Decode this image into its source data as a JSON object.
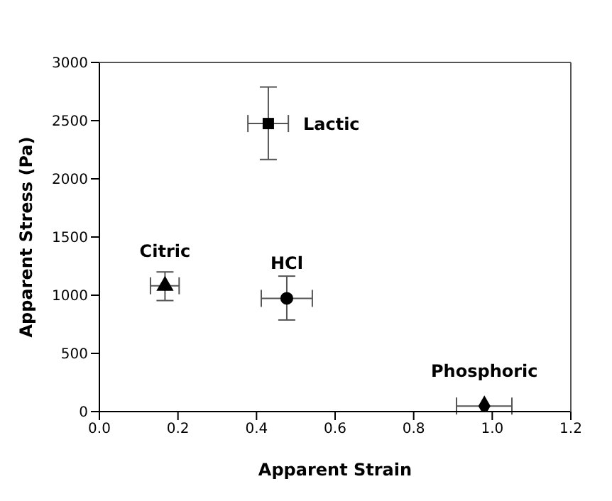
{
  "chart_data": {
    "type": "scatter",
    "xlabel": "Apparent Strain",
    "ylabel": "Apparent Stress (Pa)",
    "xlim": [
      0,
      1.2
    ],
    "xticks": [
      {
        "value": 0,
        "label": "0.0"
      },
      {
        "value": 0.2,
        "label": "0.2"
      },
      {
        "value": 0.4,
        "label": "0.4"
      },
      {
        "value": 0.6,
        "label": "0.6"
      },
      {
        "value": 0.8,
        "label": "0.8"
      },
      {
        "value": 1,
        "label": "1.0"
      },
      {
        "value": 1.2,
        "label": "1.2"
      }
    ],
    "ylim": [
      0,
      3000
    ],
    "yticks": [
      0,
      500,
      1000,
      1500,
      2000,
      2500,
      3000
    ],
    "grid": false,
    "legend": false,
    "series": [
      {
        "name": "Lactic",
        "color": "#000000",
        "marker": "square",
        "x": [
          0.43
        ],
        "values": [
          2475
        ],
        "errors": [
          [
            2166,
            2789
          ]
        ],
        "xerrors": [
          [
            0.378,
            0.481
          ]
        ]
      },
      {
        "name": "Citric",
        "color": "#000000",
        "marker": "triangle",
        "x": [
          0.167
        ],
        "values": [
          1081
        ],
        "errors": [
          [
            954,
            1200
          ]
        ],
        "xerrors": [
          [
            0.13,
            0.203
          ]
        ]
      },
      {
        "name": "HCl",
        "color": "#000000",
        "marker": "circle",
        "x": [
          0.477
        ],
        "values": [
          973
        ],
        "errors": [
          [
            787,
            1164
          ]
        ],
        "xerrors": [
          [
            0.412,
            0.542
          ]
        ]
      },
      {
        "name": "Phosphoric",
        "color": "#000000",
        "marker": "diamond",
        "x": [
          0.98
        ],
        "values": [
          48
        ],
        "xerrors": [
          [
            0.909,
            1.05
          ]
        ]
      }
    ]
  }
}
